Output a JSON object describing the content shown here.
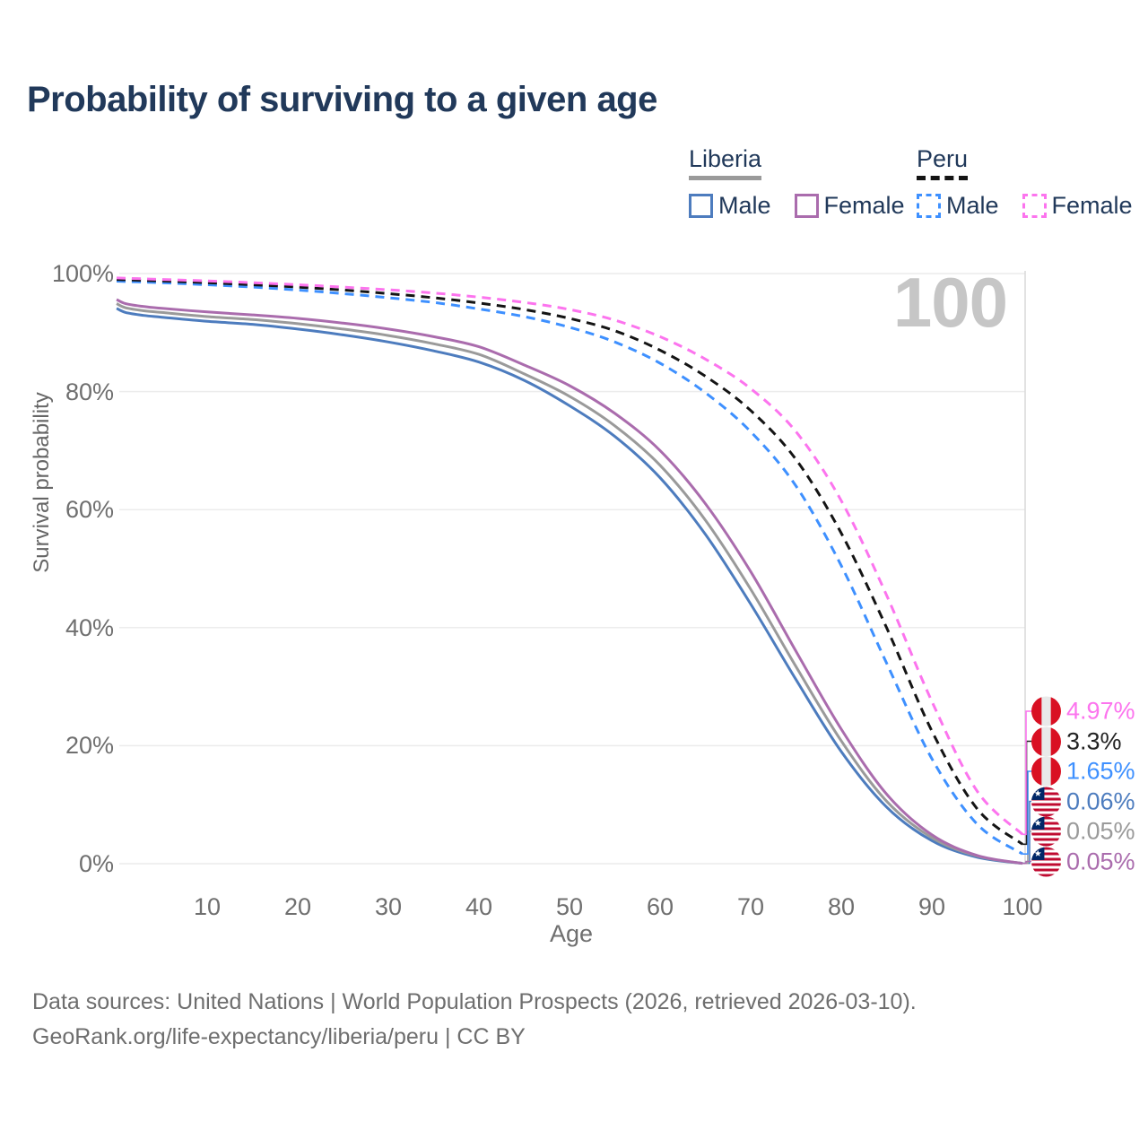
{
  "title": "Probability of surviving to a given age",
  "marker": {
    "age_label": "100"
  },
  "legend": {
    "position": "top-right",
    "groups": [
      {
        "name": "Liberia",
        "line_style": "solid",
        "underline_color": "#9a9a9a",
        "items": [
          {
            "label": "Male",
            "color": "#4d7cbe"
          },
          {
            "label": "Female",
            "color": "#aa6cad"
          }
        ]
      },
      {
        "name": "Peru",
        "line_style": "dashed",
        "underline_color": "#141414",
        "items": [
          {
            "label": "Male",
            "color": "#3e90ff"
          },
          {
            "label": "Female",
            "color": "#fc74ee"
          }
        ]
      }
    ]
  },
  "chart_data": {
    "type": "line",
    "title": "Probability of surviving to a given age",
    "x_label": "Age",
    "y_label": "Survival probability",
    "xlim": [
      0,
      100
    ],
    "ylim": [
      0,
      100
    ],
    "grid": true,
    "x_ticks": [
      10,
      20,
      30,
      40,
      50,
      60,
      70,
      80,
      90,
      100
    ],
    "y_ticks": [
      {
        "value": 0,
        "label": "0%"
      },
      {
        "value": 20,
        "label": "20%"
      },
      {
        "value": 40,
        "label": "40%"
      },
      {
        "value": 60,
        "label": "60%"
      },
      {
        "value": 80,
        "label": "80%"
      },
      {
        "value": 100,
        "label": "100%"
      }
    ],
    "hover_age": 100,
    "ages": [
      0,
      1,
      3,
      5,
      10,
      15,
      20,
      25,
      30,
      35,
      40,
      45,
      50,
      55,
      60,
      65,
      70,
      75,
      80,
      85,
      90,
      95,
      100
    ],
    "series": [
      {
        "name": "Liberia Male",
        "country": "Liberia",
        "sex": "male",
        "color": "#4d7cbe",
        "dash": false,
        "flag": "liberia",
        "values": [
          94.1,
          93.4,
          92.9,
          92.6,
          91.9,
          91.4,
          90.6,
          89.6,
          88.4,
          86.9,
          85.0,
          81.9,
          77.6,
          72.4,
          65.4,
          55.8,
          44.0,
          31.2,
          19.0,
          9.6,
          3.9,
          1.1,
          0.06
        ],
        "end_label": {
          "text": "0.06%",
          "color": "#4d7cbe",
          "row": 3
        }
      },
      {
        "name": "Liberia Both sexes",
        "country": "Liberia",
        "sex": "total",
        "color": "#9a9a9a",
        "dash": false,
        "flag": "liberia",
        "values": [
          94.9,
          94.2,
          93.7,
          93.4,
          92.7,
          92.2,
          91.5,
          90.6,
          89.5,
          88.1,
          86.3,
          83.0,
          79.2,
          74.2,
          67.5,
          58.2,
          46.5,
          33.4,
          20.8,
          10.6,
          4.4,
          1.3,
          0.05
        ],
        "end_label": {
          "text": "0.05%",
          "color": "#9a9a9a",
          "row": 4
        }
      },
      {
        "name": "Liberia Female",
        "country": "Liberia",
        "sex": "female",
        "color": "#aa6cad",
        "dash": false,
        "flag": "liberia",
        "values": [
          95.6,
          94.9,
          94.4,
          94.1,
          93.5,
          93.0,
          92.4,
          91.6,
          90.6,
          89.3,
          87.6,
          84.5,
          81.0,
          76.3,
          70.0,
          61.0,
          49.5,
          36.0,
          22.8,
          11.8,
          4.9,
          1.4,
          0.05
        ],
        "end_label": {
          "text": "0.05%",
          "color": "#aa6cad",
          "row": 5
        }
      },
      {
        "name": "Peru Male",
        "country": "Peru",
        "sex": "male",
        "color": "#3e90ff",
        "dash": true,
        "flag": "peru",
        "values": [
          98.7,
          98.65,
          98.55,
          98.45,
          98.1,
          97.7,
          97.2,
          96.6,
          95.9,
          95.1,
          94.0,
          92.7,
          90.9,
          88.4,
          84.8,
          79.8,
          73.2,
          64.0,
          50.5,
          34.0,
          17.8,
          6.7,
          1.65
        ],
        "end_label": {
          "text": "1.65%",
          "color": "#3e90ff",
          "row": 2
        }
      },
      {
        "name": "Peru Both sexes",
        "country": "Peru",
        "sex": "total",
        "color": "#141414",
        "dash": true,
        "flag": "peru",
        "values": [
          99.0,
          98.95,
          98.85,
          98.75,
          98.45,
          98.1,
          97.7,
          97.2,
          96.6,
          95.9,
          95.0,
          93.9,
          92.4,
          90.3,
          87.0,
          82.6,
          76.8,
          68.5,
          56.0,
          40.0,
          22.5,
          9.3,
          3.3
        ],
        "end_label": {
          "text": "3.3%",
          "color": "#222222",
          "row": 1
        }
      },
      {
        "name": "Peru Female",
        "country": "Peru",
        "sex": "female",
        "color": "#fc74ee",
        "dash": true,
        "flag": "peru",
        "values": [
          99.25,
          99.2,
          99.1,
          99.0,
          98.75,
          98.45,
          98.1,
          97.7,
          97.25,
          96.7,
          96.0,
          95.1,
          93.9,
          92.1,
          89.3,
          85.5,
          80.5,
          73.2,
          61.5,
          45.5,
          27.5,
          12.3,
          4.97
        ],
        "end_label": {
          "text": "4.97%",
          "color": "#fc74ee",
          "row": 0
        }
      }
    ]
  },
  "flag_colors": {
    "peru_red": "#d91023",
    "peru_white": "#e9e9e9",
    "liberia_red": "#bf0a30",
    "liberia_white": "#ffffff",
    "liberia_blue": "#002868"
  },
  "footer": {
    "line1": "Data sources: United Nations | World Population Prospects (2026, retrieved 2026-03-10).",
    "line2": "GeoRank.org/life-expectancy/liberia/peru | CC BY"
  }
}
